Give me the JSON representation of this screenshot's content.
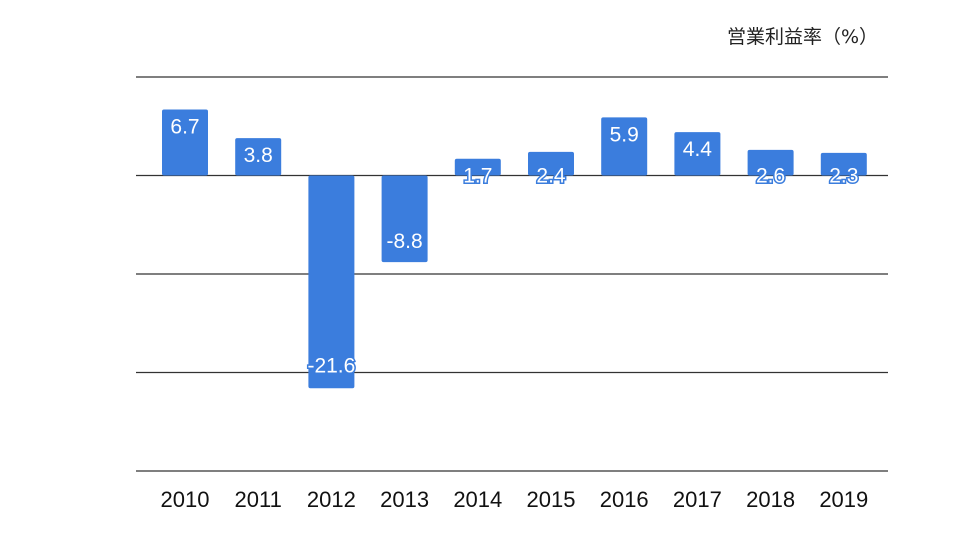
{
  "unit_label": "営業利益率（%）",
  "colors": {
    "bar": "#3b7ddd",
    "gridline": "#333333",
    "label_on_bar": "#ffffff",
    "label_outline": "#3b7ddd",
    "tick_text": "#111111"
  },
  "chart_data": {
    "type": "bar",
    "title": "",
    "xlabel": "",
    "ylabel": "営業利益率（%）",
    "categories": [
      "2010",
      "2011",
      "2012",
      "2013",
      "2014",
      "2015",
      "2016",
      "2017",
      "2018",
      "2019"
    ],
    "series": [
      {
        "values": [
          6.7,
          3.8,
          -21.6,
          -8.8,
          1.7,
          2.4,
          5.9,
          4.4,
          2.6,
          2.3
        ]
      }
    ],
    "data_labels": [
      "6.7",
      "3.8",
      "-21.6",
      "-8.8",
      "1.7",
      "2.4",
      "5.9",
      "4.4",
      "2.6",
      "2.3"
    ],
    "ylim": [
      -30,
      10
    ],
    "gridlines": [
      10,
      0,
      -10,
      -20,
      -30
    ],
    "grid": true,
    "legend": "none",
    "y_tick_labels_shown": false
  }
}
